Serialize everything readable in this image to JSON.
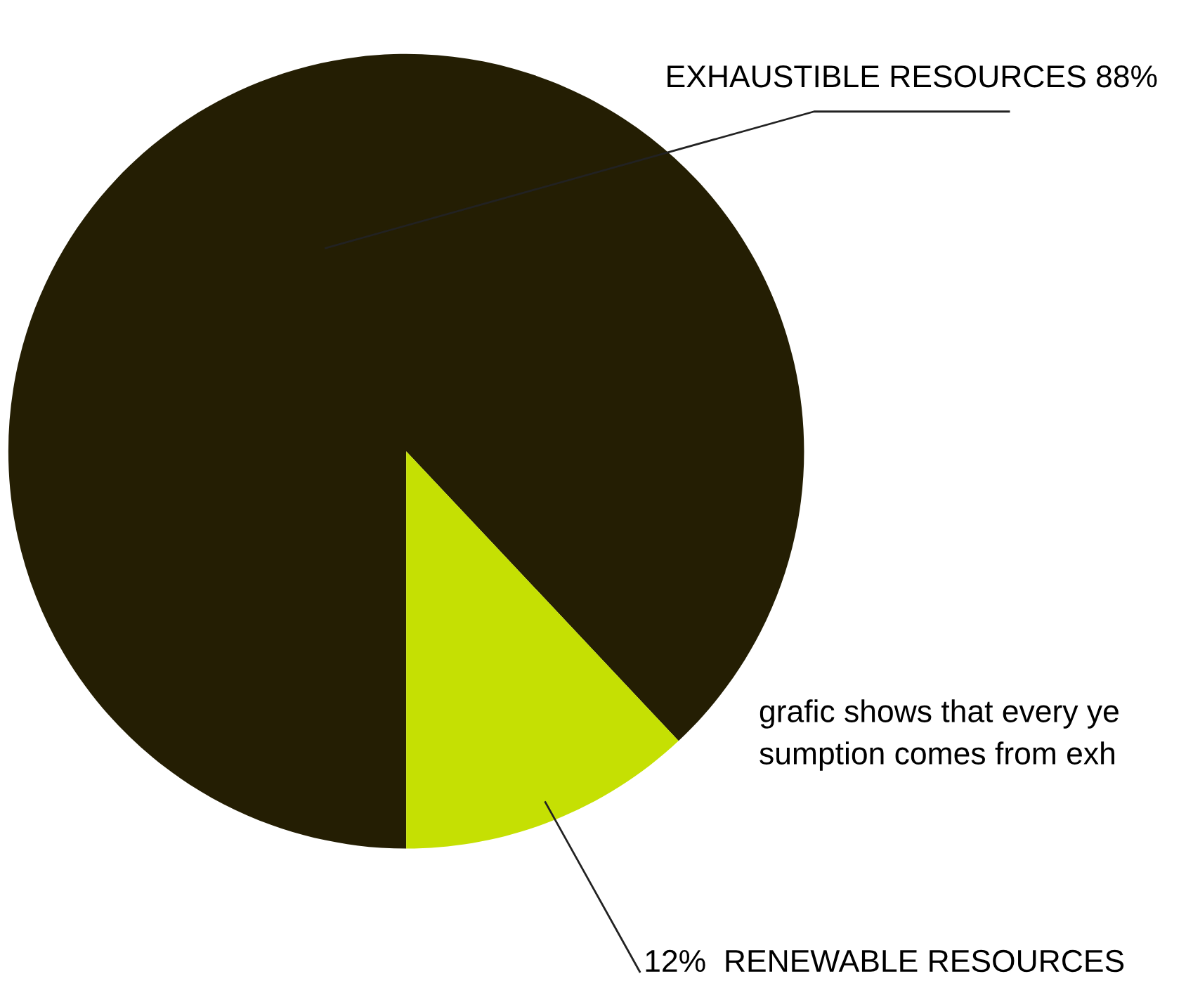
{
  "chart_data": {
    "type": "pie",
    "categories": [
      "EXHAUSTIBLE RESOURCES",
      "RENEWABLE RESOURCES"
    ],
    "values": [
      88,
      12
    ],
    "value_labels": [
      "88%",
      "12%"
    ],
    "colors": [
      "#241e03",
      "#c5e003"
    ],
    "annotations": [
      "grafic shows that every ye",
      "sumption comes from exh"
    ]
  }
}
